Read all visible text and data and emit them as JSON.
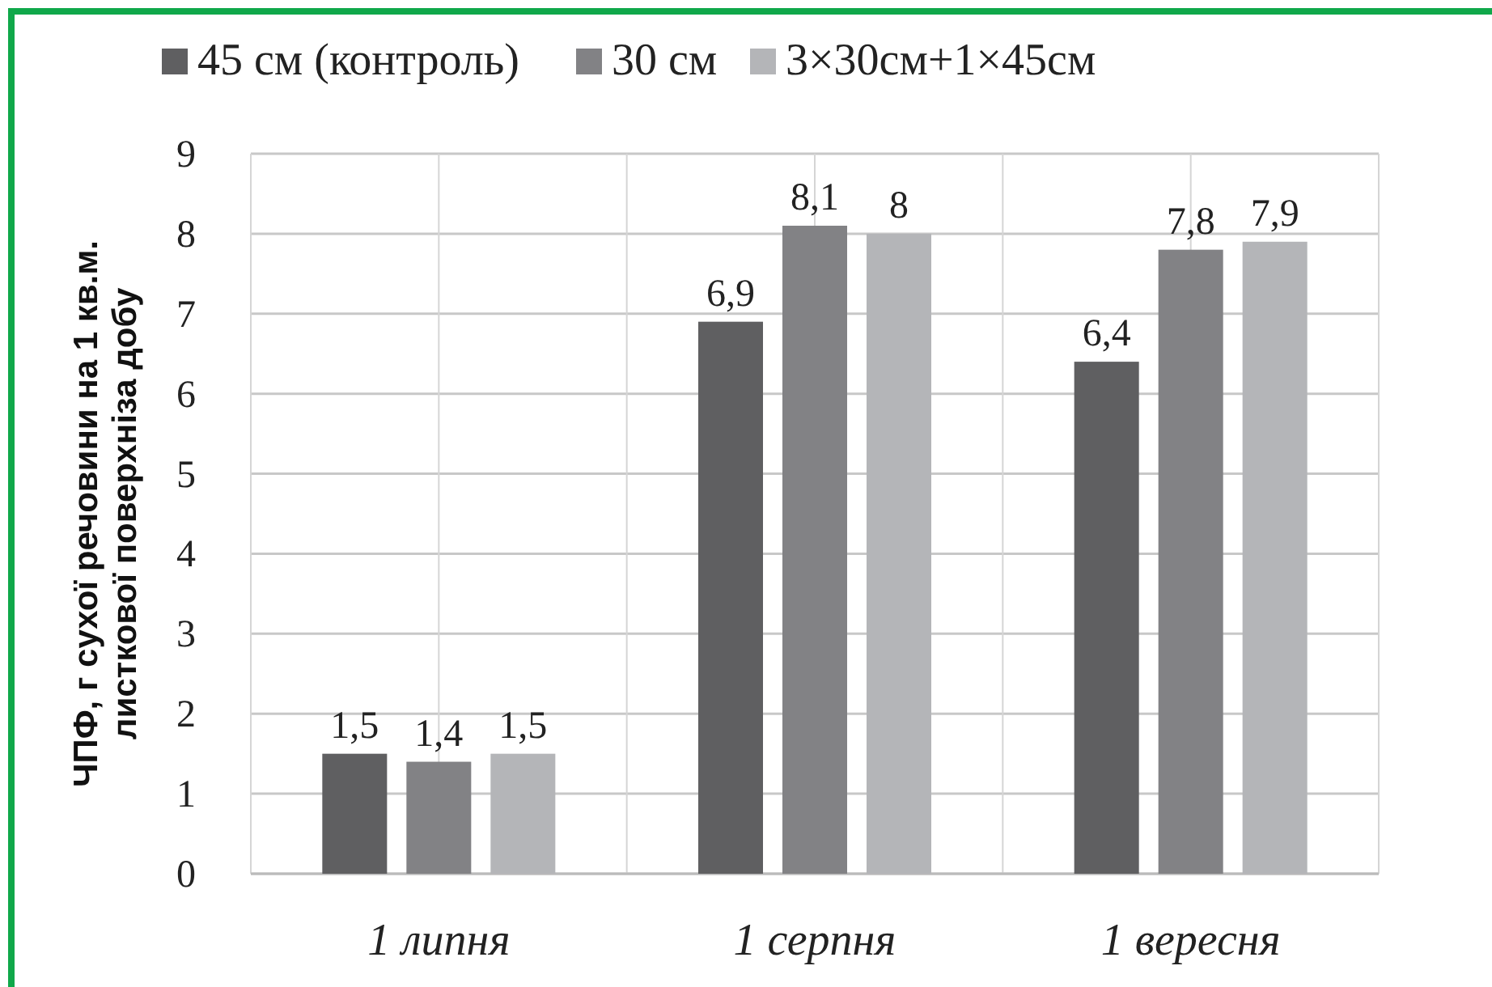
{
  "chart_data": {
    "type": "bar",
    "ylabel": "ЧПФ, г сухої речовини на 1 кв.м.\nлисткової поверхніза добу",
    "categories": [
      "1 липня",
      "1 серпня",
      "1 вересня"
    ],
    "series": [
      {
        "name": "45 см (контроль)",
        "color": "#5f5f61",
        "values": [
          1.5,
          6.9,
          6.4
        ],
        "value_labels": [
          "1,5",
          "6,9",
          "6,4"
        ]
      },
      {
        "name": "30 см",
        "color": "#828285",
        "values": [
          1.4,
          8.1,
          7.8
        ],
        "value_labels": [
          "1,4",
          "8,1",
          "7,8"
        ]
      },
      {
        "name": "3×30см+1×45см",
        "color": "#b4b5b8",
        "values": [
          1.5,
          8.0,
          7.9
        ],
        "value_labels": [
          "1,5",
          "8",
          "7,9"
        ]
      }
    ],
    "ylim": [
      0,
      9
    ],
    "yticks": [
      0,
      1,
      2,
      3,
      4,
      5,
      6,
      7,
      8,
      9
    ],
    "grid": true,
    "legend": "top"
  }
}
